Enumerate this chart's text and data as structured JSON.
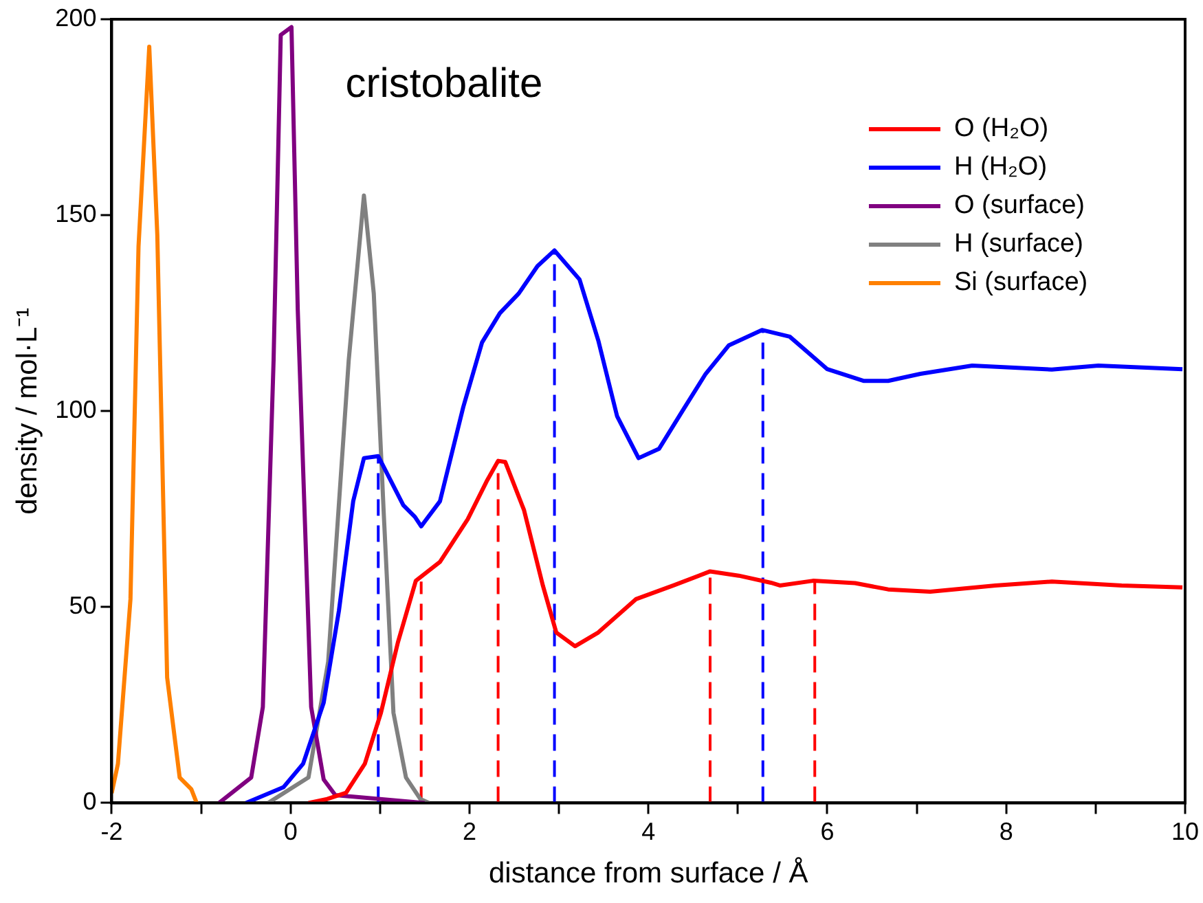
{
  "chart_data": {
    "type": "line",
    "xlabel": "distance from surface / Å",
    "ylabel": "density / mol·L⁻¹",
    "annotations": [
      "cristobalite"
    ],
    "xlim": [
      -2,
      10
    ],
    "xticks": [
      -2,
      {
        "value": -1,
        "label": null
      },
      0,
      {
        "value": 1,
        "label": null
      },
      2,
      {
        "value": 3,
        "label": null
      },
      4,
      {
        "value": 5,
        "label": null
      },
      6,
      {
        "value": 7,
        "label": null
      },
      8,
      {
        "value": 9,
        "label": null
      },
      10
    ],
    "ylim": [
      0,
      200
    ],
    "yticks": [
      0,
      50,
      100,
      150,
      200
    ],
    "grid": false,
    "legend": "top right",
    "marker": "none",
    "line_style": "solid",
    "series": [
      {
        "name": "O (H₂O)",
        "color": "#ff0000",
        "x": [
          0.2,
          0.41,
          0.62,
          0.83,
          1.01,
          1.2,
          1.4,
          1.67,
          1.98,
          2.19,
          2.32,
          2.4,
          2.61,
          2.82,
          2.97,
          3.18,
          3.44,
          3.86,
          4.28,
          4.69,
          5.01,
          5.37,
          5.47,
          5.84,
          6.31,
          6.68,
          7.15,
          7.88,
          8.51,
          9.29,
          9.97
        ],
        "values": [
          0,
          1,
          2.6,
          10,
          23,
          41,
          56.7,
          61.5,
          72.4,
          82,
          87.3,
          87,
          74.7,
          55.5,
          43.5,
          40,
          43.5,
          52,
          55.5,
          59.1,
          58,
          56.2,
          55.5,
          56.7,
          56.1,
          54.5,
          53.9,
          55.5,
          56.5,
          55.5,
          55
        ]
      },
      {
        "name": "H (H₂O)",
        "color": "#0000ff",
        "x": [
          -0.5,
          -0.08,
          0.14,
          0.37,
          0.54,
          0.7,
          0.82,
          0.98,
          1.26,
          1.39,
          1.46,
          1.67,
          1.93,
          2.14,
          2.34,
          2.55,
          2.76,
          2.95,
          3.23,
          3.44,
          3.65,
          3.89,
          4.12,
          4.38,
          4.64,
          4.9,
          5.27,
          5.58,
          6,
          6.41,
          6.68,
          7.04,
          7.62,
          8.51,
          9.03,
          9.97
        ],
        "values": [
          0,
          4,
          10,
          25.6,
          49,
          77,
          88,
          88.5,
          76,
          73,
          70.6,
          77,
          101,
          117.5,
          125,
          130,
          137,
          141,
          133.6,
          118,
          98.7,
          88,
          90.4,
          100,
          109.5,
          116.8,
          120.7,
          119,
          110.7,
          107.7,
          107.7,
          109.5,
          111.6,
          110.6,
          111.6,
          110.7
        ]
      },
      {
        "name": "O (surface)",
        "color": "#800080",
        "x": [
          -0.8,
          -0.44,
          -0.31,
          -0.19,
          -0.11,
          0.01,
          0.08,
          0.23,
          0.37,
          0.5,
          1.5
        ],
        "values": [
          0,
          6.5,
          24.5,
          113,
          196,
          198,
          126,
          24.5,
          6,
          2,
          0
        ]
      },
      {
        "name": "H (surface)",
        "color": "#808080",
        "x": [
          -0.25,
          0.2,
          0.42,
          0.65,
          0.82,
          0.93,
          1.04,
          1.15,
          1.29,
          1.45,
          1.55
        ],
        "values": [
          0,
          6.5,
          36,
          113,
          155,
          130,
          74.6,
          23,
          6.5,
          1,
          0
        ]
      },
      {
        "name": "Si (surface)",
        "color": "#ff8000",
        "x": [
          -2,
          -1.93,
          -1.79,
          -1.7,
          -1.58,
          -1.49,
          -1.38,
          -1.24,
          -1.11,
          -1.05
        ],
        "values": [
          2.5,
          10,
          52,
          142,
          193,
          145,
          32,
          6.5,
          3.5,
          0
        ]
      },
      {
        "color": "#0000ff",
        "line_style": "dashed",
        "x": [
          0.98,
          0.98
        ],
        "values": [
          0,
          88.5
        ]
      },
      {
        "color": "#0000ff",
        "line_style": "dashed",
        "x": [
          2.95,
          2.95
        ],
        "values": [
          0,
          141
        ]
      },
      {
        "color": "#0000ff",
        "line_style": "dashed",
        "x": [
          5.28,
          5.28
        ],
        "values": [
          0,
          120.7
        ]
      },
      {
        "color": "#ff0000",
        "line_style": "dashed",
        "x": [
          1.46,
          1.46
        ],
        "values": [
          0,
          56.5
        ]
      },
      {
        "color": "#ff0000",
        "line_style": "dashed",
        "x": [
          2.32,
          2.32
        ],
        "values": [
          0,
          87.3
        ]
      },
      {
        "color": "#ff0000",
        "line_style": "dashed",
        "x": [
          4.69,
          4.69
        ],
        "values": [
          0,
          59.1
        ]
      },
      {
        "color": "#ff0000",
        "line_style": "dashed",
        "x": [
          5.86,
          5.86
        ],
        "values": [
          0,
          56.7
        ]
      }
    ]
  }
}
